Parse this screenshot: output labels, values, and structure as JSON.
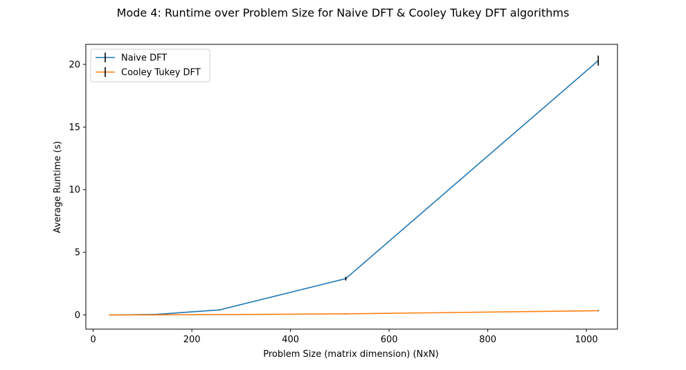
{
  "chart_data": {
    "type": "line",
    "title": "Mode 4: Runtime over Problem Size for Naive DFT & Cooley Tukey DFT algorithms",
    "xlabel": "Problem Size (matrix dimension) (NxN)",
    "ylabel": "Average Runtime (s)",
    "xlim": [
      -15,
      1063
    ],
    "ylim": [
      -1.13,
      21.6
    ],
    "xticks": [
      0,
      200,
      400,
      600,
      800,
      1000
    ],
    "yticks": [
      0,
      5,
      10,
      15,
      20
    ],
    "grid": false,
    "legend_position": "upper-left",
    "x": [
      32,
      64,
      128,
      256,
      512,
      1024
    ],
    "series": [
      {
        "name": "Naive DFT",
        "color": "#1f77b4",
        "values": [
          0.003,
          0.01,
          0.05,
          0.4,
          2.9,
          20.3
        ],
        "errors": [
          0.001,
          0.002,
          0.005,
          0.02,
          0.15,
          0.4
        ]
      },
      {
        "name": "Cooley Tukey DFT",
        "color": "#ff7f0e",
        "values": [
          0.001,
          0.003,
          0.008,
          0.03,
          0.09,
          0.34
        ],
        "errors": [
          0.0005,
          0.001,
          0.002,
          0.003,
          0.01,
          0.03
        ]
      }
    ]
  }
}
